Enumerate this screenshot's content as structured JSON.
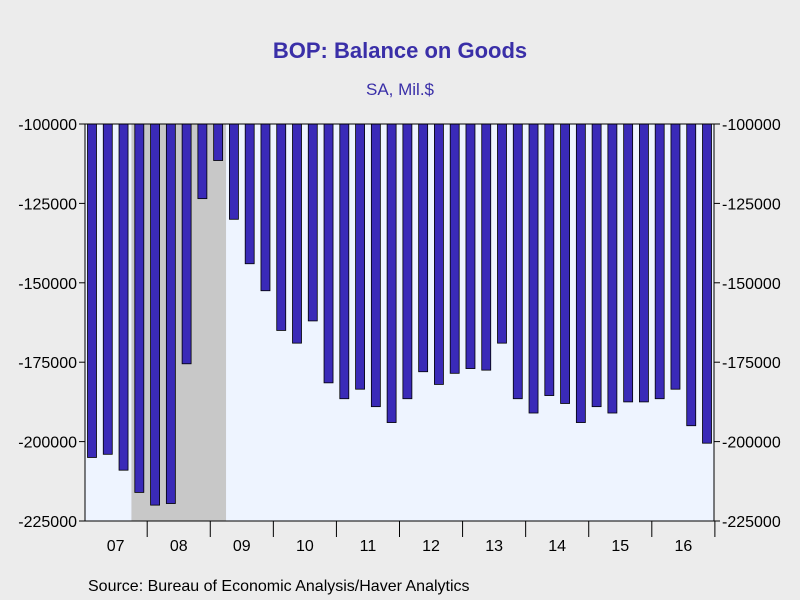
{
  "chart_data": {
    "type": "bar",
    "title": "BOP: Balance on Goods",
    "subtitle": "SA, Mil.$",
    "source": "Source:  Bureau of Economic Analysis/Haver Analytics",
    "ylim": [
      -225000,
      -100000
    ],
    "yticks": [
      "-100000",
      "-125000",
      "-150000",
      "-175000",
      "-200000",
      "-225000"
    ],
    "ytick_values": [
      -100000,
      -125000,
      -150000,
      -175000,
      -200000,
      -225000
    ],
    "x_range": [
      2007.0,
      2016.75
    ],
    "xtick_labels": [
      "07",
      "08",
      "09",
      "10",
      "11",
      "12",
      "13",
      "14",
      "15",
      "16"
    ],
    "xtick_centers": [
      2007.5,
      2008.5,
      2009.5,
      2010.5,
      2011.5,
      2012.5,
      2013.5,
      2014.5,
      2015.5,
      2016.5
    ],
    "shaded_period": [
      2007.75,
      2009.25
    ],
    "shaded_color": "#c8c8c8",
    "plot_background": "#eef4ff",
    "bar_color": "#3a2ab8",
    "series": [
      {
        "x": [
          2007.0,
          2007.25,
          2007.5,
          2007.75,
          2008.0,
          2008.25,
          2008.5,
          2008.75,
          2009.0,
          2009.25,
          2009.5,
          2009.75,
          2010.0,
          2010.25,
          2010.5,
          2010.75,
          2011.0,
          2011.25,
          2011.5,
          2011.75,
          2012.0,
          2012.25,
          2012.5,
          2012.75,
          2013.0,
          2013.25,
          2013.5,
          2013.75,
          2014.0,
          2014.25,
          2014.5,
          2014.75,
          2015.0,
          2015.25,
          2015.5,
          2015.75,
          2016.0,
          2016.25,
          2016.5,
          2016.75
        ],
        "values": [
          -205000,
          -204000,
          -209000,
          -216000,
          -220000,
          -219500,
          -175500,
          -123500,
          -111500,
          -130000,
          -144000,
          -152500,
          -165000,
          -169000,
          -162000,
          -181500,
          -186500,
          -183500,
          -189000,
          -194000,
          -186500,
          -178000,
          -182000,
          -178500,
          -177000,
          -177500,
          -169000,
          -186500,
          -191000,
          -185500,
          -188000,
          -194000,
          -189000,
          -191000,
          -187500,
          -187500,
          -186500,
          -183500,
          -195000,
          -200500
        ]
      }
    ]
  }
}
